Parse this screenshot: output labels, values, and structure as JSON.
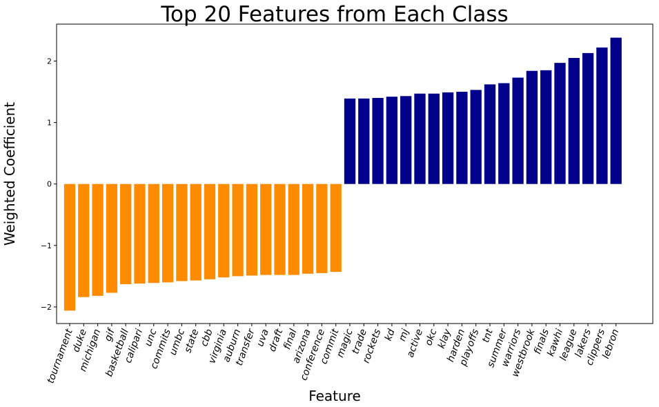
{
  "chart_data": {
    "type": "bar",
    "title": "Top 20 Features from Each Class",
    "xlabel": "Feature",
    "ylabel": "Weighted Coefficient",
    "ylim": [
      -2.27,
      2.6
    ],
    "yticks": [
      -2,
      -1,
      0,
      1,
      2
    ],
    "ytick_labels": [
      "−2",
      "−1",
      "0",
      "1",
      "2"
    ],
    "grid": false,
    "legend": "none",
    "colors": {
      "negative": "#ff8c00",
      "positive": "#00008b"
    },
    "categories": [
      "tournament",
      "duke",
      "michigan",
      "gif",
      "basketball",
      "calipari",
      "unc",
      "commits",
      "umbc",
      "state",
      "cbb",
      "virginia",
      "auburn",
      "transfer",
      "uva",
      "draft",
      "final",
      "arizona",
      "conference",
      "commit",
      "magic",
      "trade",
      "rockets",
      "kd",
      "mj",
      "active",
      "okc",
      "klay",
      "harden",
      "playoffs",
      "tnt",
      "summer",
      "warriors",
      "westbrook",
      "finals",
      "kawhi",
      "league",
      "lakers",
      "clippers",
      "lebron"
    ],
    "values": [
      -2.06,
      -1.84,
      -1.82,
      -1.77,
      -1.63,
      -1.62,
      -1.61,
      -1.6,
      -1.58,
      -1.57,
      -1.55,
      -1.52,
      -1.5,
      -1.49,
      -1.48,
      -1.48,
      -1.48,
      -1.46,
      -1.45,
      -1.43,
      1.39,
      1.39,
      1.4,
      1.42,
      1.43,
      1.47,
      1.47,
      1.49,
      1.5,
      1.53,
      1.62,
      1.64,
      1.73,
      1.84,
      1.85,
      1.97,
      2.05,
      2.13,
      2.22,
      2.38
    ]
  }
}
